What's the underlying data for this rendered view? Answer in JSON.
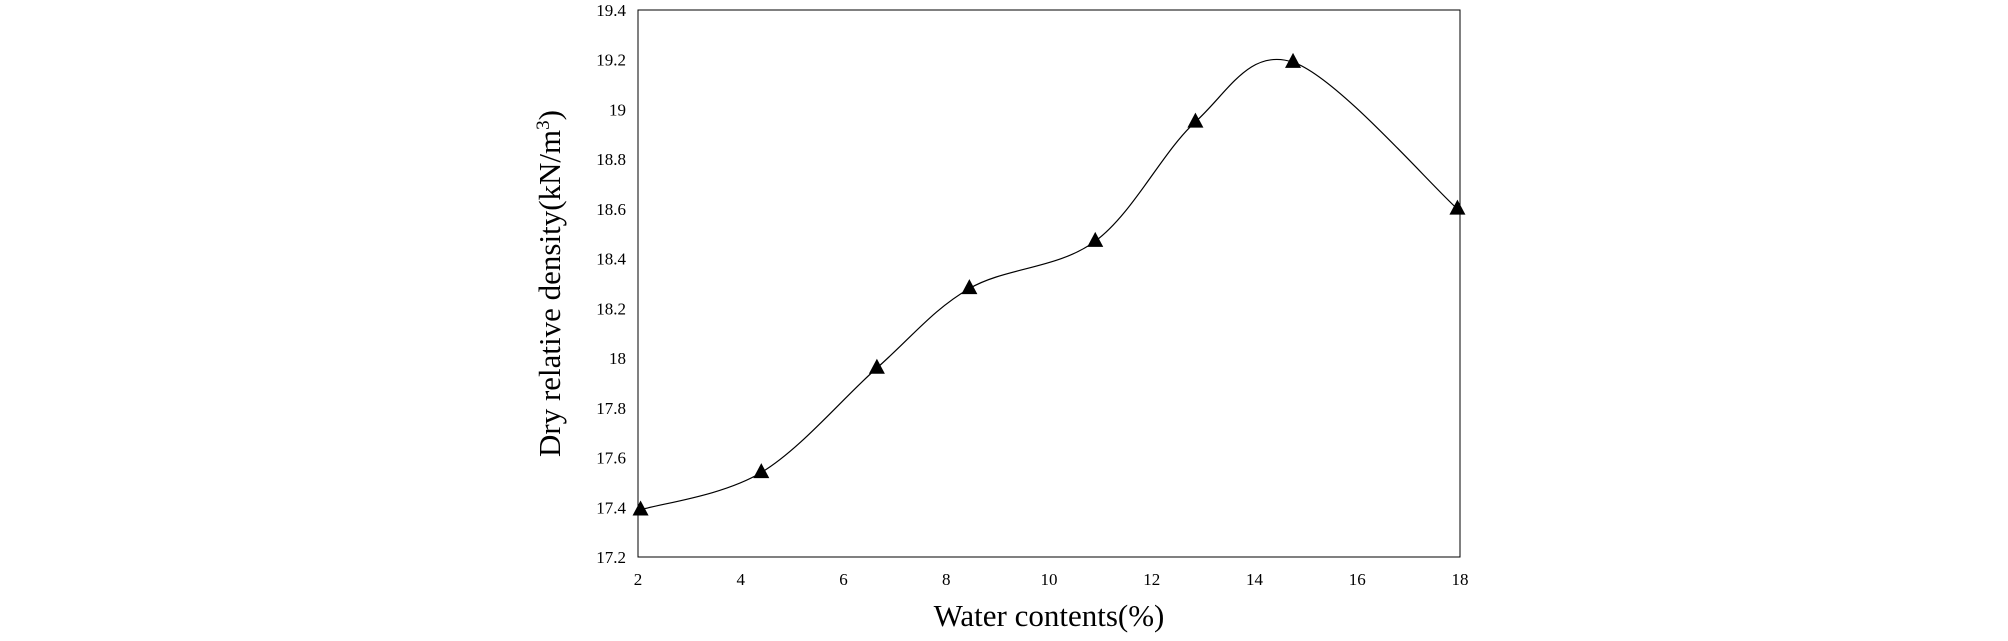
{
  "chart_data": {
    "type": "scatter",
    "title": "",
    "xlabel": "Water contents(%)",
    "ylabel": "Dry relative density(kN/m3)",
    "ylabel_parts": {
      "main": "Dry relative density(kN/m",
      "sup": "3",
      "end": ")"
    },
    "xlim": [
      2,
      18
    ],
    "ylim": [
      17.2,
      19.4
    ],
    "x_ticks": [
      "2",
      "4",
      "6",
      "8",
      "10",
      "12",
      "14",
      "16",
      "18"
    ],
    "y_ticks": [
      "17.2",
      "17.4",
      "17.6",
      "17.8",
      "18",
      "18.2",
      "18.4",
      "18.6",
      "18.8",
      "19",
      "19.2",
      "19.4"
    ],
    "grid": false,
    "legend": "none",
    "marker": "triangle",
    "smooth_line": true,
    "series": [
      {
        "x": [
          2.05,
          4.4,
          6.65,
          8.45,
          10.9,
          12.85,
          14.75,
          17.95
        ],
        "y": [
          17.39,
          17.54,
          17.96,
          18.28,
          18.47,
          18.95,
          19.19,
          18.6
        ]
      }
    ],
    "colors": {
      "marker": "#000000",
      "line": "#000000",
      "frame": "#000000"
    }
  }
}
